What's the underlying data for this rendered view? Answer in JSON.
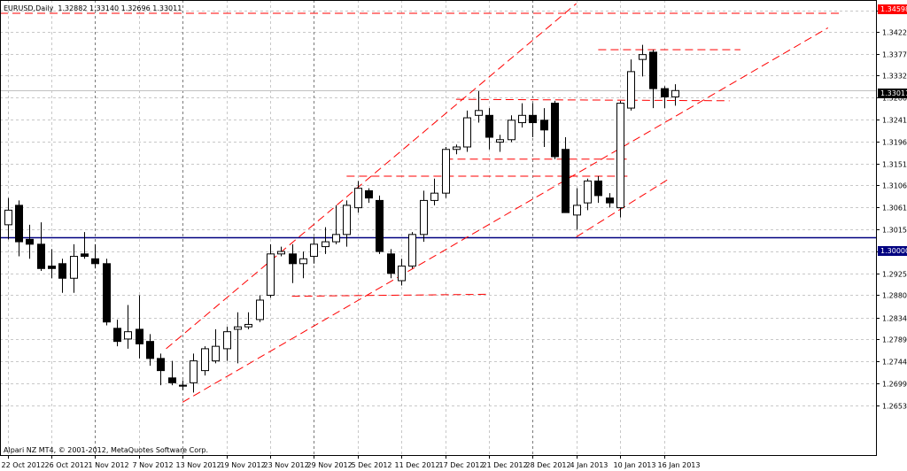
{
  "header": {
    "symbol": "EURUSD,Daily",
    "ohlc": "1.32882 1.33140 1.32696 1.33011"
  },
  "footer": {
    "copyright": "Alpari NZ MT4, © 2001-2012, MetaQuotes Software Corp."
  },
  "colors": {
    "bull_body": "#ffffff",
    "bear_body": "#000000",
    "wick": "#000000",
    "grid": "#c8c8c8",
    "trendline": "#ff0000",
    "support_line": "#000080",
    "last_price_tag": "#000000",
    "resistance_tag": "#ff0000",
    "support_tag": "#000080"
  },
  "price_tags": {
    "resistance": "1.34598",
    "last_price": "1.33011",
    "support": "1.30000"
  },
  "chart_data": {
    "type": "candlestick",
    "title": "EURUSD,Daily",
    "ylim": [
      1.2595,
      1.348
    ],
    "y_ticks": [
      "1.34650",
      "1.34220",
      "1.33770",
      "1.33325",
      "1.32865",
      "1.32410",
      "1.31960",
      "1.31510",
      "1.31060",
      "1.30610",
      "1.30150",
      "1.29700",
      "1.29250",
      "1.28800",
      "1.28340",
      "1.27890",
      "1.27440",
      "1.26990",
      "1.26530"
    ],
    "x_ticks": [
      "22 Oct 2012",
      "26 Oct 2012",
      "1 Nov 2012",
      "7 Nov 2012",
      "13 Nov 2012",
      "19 Nov 2012",
      "23 Nov 2012",
      "29 Nov 2012",
      "5 Dec 2012",
      "11 Dec 2012",
      "17 Dec 2012",
      "21 Dec 2012",
      "28 Dec 2012",
      "4 Jan 2013",
      "10 Jan 2013",
      "16 Jan 2013"
    ],
    "x_tick_index": [
      0,
      4,
      8,
      12,
      16,
      20,
      24,
      28,
      32,
      36,
      40,
      44,
      48,
      52,
      56,
      60
    ],
    "candles": [
      {
        "o": 1.3025,
        "h": 1.308,
        "l": 1.2995,
        "c": 1.3055
      },
      {
        "o": 1.3065,
        "h": 1.3075,
        "l": 1.296,
        "c": 1.299
      },
      {
        "o": 1.2995,
        "h": 1.3025,
        "l": 1.2955,
        "c": 1.2985
      },
      {
        "o": 1.2985,
        "h": 1.303,
        "l": 1.293,
        "c": 1.2935
      },
      {
        "o": 1.294,
        "h": 1.2975,
        "l": 1.2915,
        "c": 1.2935
      },
      {
        "o": 1.2945,
        "h": 1.2955,
        "l": 1.2885,
        "c": 1.2915
      },
      {
        "o": 1.2915,
        "h": 1.2985,
        "l": 1.2885,
        "c": 1.296
      },
      {
        "o": 1.2965,
        "h": 1.301,
        "l": 1.2955,
        "c": 1.296
      },
      {
        "o": 1.2955,
        "h": 1.2985,
        "l": 1.2935,
        "c": 1.2945
      },
      {
        "o": 1.2945,
        "h": 1.2955,
        "l": 1.2818,
        "c": 1.2825
      },
      {
        "o": 1.2812,
        "h": 1.283,
        "l": 1.2775,
        "c": 1.2785
      },
      {
        "o": 1.279,
        "h": 1.286,
        "l": 1.277,
        "c": 1.2805
      },
      {
        "o": 1.281,
        "h": 1.288,
        "l": 1.275,
        "c": 1.278
      },
      {
        "o": 1.2785,
        "h": 1.28,
        "l": 1.2735,
        "c": 1.275
      },
      {
        "o": 1.275,
        "h": 1.276,
        "l": 1.2695,
        "c": 1.2725
      },
      {
        "o": 1.271,
        "h": 1.2745,
        "l": 1.2695,
        "c": 1.27
      },
      {
        "o": 1.2695,
        "h": 1.2705,
        "l": 1.2685,
        "c": 1.2693
      },
      {
        "o": 1.27,
        "h": 1.276,
        "l": 1.268,
        "c": 1.2745
      },
      {
        "o": 1.2725,
        "h": 1.2775,
        "l": 1.2715,
        "c": 1.277
      },
      {
        "o": 1.2745,
        "h": 1.281,
        "l": 1.274,
        "c": 1.2775
      },
      {
        "o": 1.277,
        "h": 1.2815,
        "l": 1.2745,
        "c": 1.2805
      },
      {
        "o": 1.281,
        "h": 1.2845,
        "l": 1.274,
        "c": 1.2815
      },
      {
        "o": 1.2815,
        "h": 1.2845,
        "l": 1.281,
        "c": 1.282
      },
      {
        "o": 1.283,
        "h": 1.288,
        "l": 1.2825,
        "c": 1.287
      },
      {
        "o": 1.288,
        "h": 1.2985,
        "l": 1.2875,
        "c": 1.2965
      },
      {
        "o": 1.2965,
        "h": 1.298,
        "l": 1.296,
        "c": 1.297
      },
      {
        "o": 1.2965,
        "h": 1.2985,
        "l": 1.2905,
        "c": 1.2945
      },
      {
        "o": 1.2945,
        "h": 1.297,
        "l": 1.2915,
        "c": 1.2955
      },
      {
        "o": 1.296,
        "h": 1.3,
        "l": 1.2945,
        "c": 1.2985
      },
      {
        "o": 1.298,
        "h": 1.302,
        "l": 1.2965,
        "c": 1.299
      },
      {
        "o": 1.299,
        "h": 1.3065,
        "l": 1.2985,
        "c": 1.3005
      },
      {
        "o": 1.3005,
        "h": 1.3075,
        "l": 1.298,
        "c": 1.3065
      },
      {
        "o": 1.306,
        "h": 1.3115,
        "l": 1.305,
        "c": 1.31
      },
      {
        "o": 1.3095,
        "h": 1.31,
        "l": 1.307,
        "c": 1.308
      },
      {
        "o": 1.3075,
        "h": 1.3085,
        "l": 1.2965,
        "c": 1.297
      },
      {
        "o": 1.2965,
        "h": 1.2975,
        "l": 1.2915,
        "c": 1.2925
      },
      {
        "o": 1.291,
        "h": 1.2955,
        "l": 1.29,
        "c": 1.294
      },
      {
        "o": 1.294,
        "h": 1.301,
        "l": 1.2935,
        "c": 1.3005
      },
      {
        "o": 1.3005,
        "h": 1.3095,
        "l": 1.299,
        "c": 1.3075
      },
      {
        "o": 1.3075,
        "h": 1.312,
        "l": 1.3065,
        "c": 1.309
      },
      {
        "o": 1.309,
        "h": 1.3185,
        "l": 1.308,
        "c": 1.318
      },
      {
        "o": 1.318,
        "h": 1.319,
        "l": 1.317,
        "c": 1.3185
      },
      {
        "o": 1.3185,
        "h": 1.326,
        "l": 1.3175,
        "c": 1.3245
      },
      {
        "o": 1.325,
        "h": 1.33,
        "l": 1.3235,
        "c": 1.326
      },
      {
        "o": 1.325,
        "h": 1.3265,
        "l": 1.318,
        "c": 1.3205
      },
      {
        "o": 1.3195,
        "h": 1.321,
        "l": 1.3175,
        "c": 1.32
      },
      {
        "o": 1.32,
        "h": 1.325,
        "l": 1.3195,
        "c": 1.324
      },
      {
        "o": 1.3235,
        "h": 1.3275,
        "l": 1.3225,
        "c": 1.325
      },
      {
        "o": 1.325,
        "h": 1.3275,
        "l": 1.3205,
        "c": 1.3235
      },
      {
        "o": 1.324,
        "h": 1.3265,
        "l": 1.3185,
        "c": 1.322
      },
      {
        "o": 1.3275,
        "h": 1.328,
        "l": 1.316,
        "c": 1.3165
      },
      {
        "o": 1.318,
        "h": 1.3205,
        "l": 1.305,
        "c": 1.305
      },
      {
        "o": 1.3045,
        "h": 1.31,
        "l": 1.3015,
        "c": 1.3065
      },
      {
        "o": 1.307,
        "h": 1.312,
        "l": 1.3055,
        "c": 1.3115
      },
      {
        "o": 1.3115,
        "h": 1.3125,
        "l": 1.307,
        "c": 1.3085
      },
      {
        "o": 1.308,
        "h": 1.309,
        "l": 1.306,
        "c": 1.307
      },
      {
        "o": 1.306,
        "h": 1.328,
        "l": 1.304,
        "c": 1.3275
      },
      {
        "o": 1.3265,
        "h": 1.3365,
        "l": 1.326,
        "c": 1.334
      },
      {
        "o": 1.3365,
        "h": 1.3395,
        "l": 1.333,
        "c": 1.3375
      },
      {
        "o": 1.338,
        "h": 1.3385,
        "l": 1.3265,
        "c": 1.3305
      },
      {
        "o": 1.3305,
        "h": 1.331,
        "l": 1.3265,
        "c": 1.3288
      },
      {
        "o": 1.3288,
        "h": 1.3314,
        "l": 1.327,
        "c": 1.3301
      }
    ],
    "trendlines": [
      {
        "p1": {
          "i": 14.5,
          "price": 1.277
        },
        "p2": {
          "i": 52,
          "price": 1.348
        }
      },
      {
        "p1": {
          "i": 16,
          "price": 1.266
        },
        "p2": {
          "i": 75,
          "price": 1.343
        }
      },
      {
        "p1": {
          "i": 52,
          "price": 1.3
        },
        "p2": {
          "i": 60.5,
          "price": 1.312
        }
      },
      {
        "p1": {
          "i": 26,
          "price": 1.2878
        },
        "p2": {
          "i": 44,
          "price": 1.2882
        }
      },
      {
        "p1": {
          "i": 31,
          "price": 1.3125
        },
        "p2": {
          "i": 57,
          "price": 1.3125
        }
      },
      {
        "p1": {
          "i": 40,
          "price": 1.316
        },
        "p2": {
          "i": 57,
          "price": 1.316
        }
      },
      {
        "p1": {
          "i": 41,
          "price": 1.3283
        },
        "p2": {
          "i": 66,
          "price": 1.328
        }
      },
      {
        "p1": {
          "i": 54,
          "price": 1.3385
        },
        "p2": {
          "i": 67,
          "price": 1.3385
        }
      },
      {
        "p1": {
          "i": -1,
          "price": 1.346
        },
        "p2": {
          "i": 76,
          "price": 1.346
        }
      }
    ],
    "horizontal_levels": [
      {
        "price": 1.3,
        "style": "solid",
        "color": "#000080"
      },
      {
        "price": 1.3301,
        "style": "solid",
        "color": "#c0c0c0"
      }
    ]
  }
}
